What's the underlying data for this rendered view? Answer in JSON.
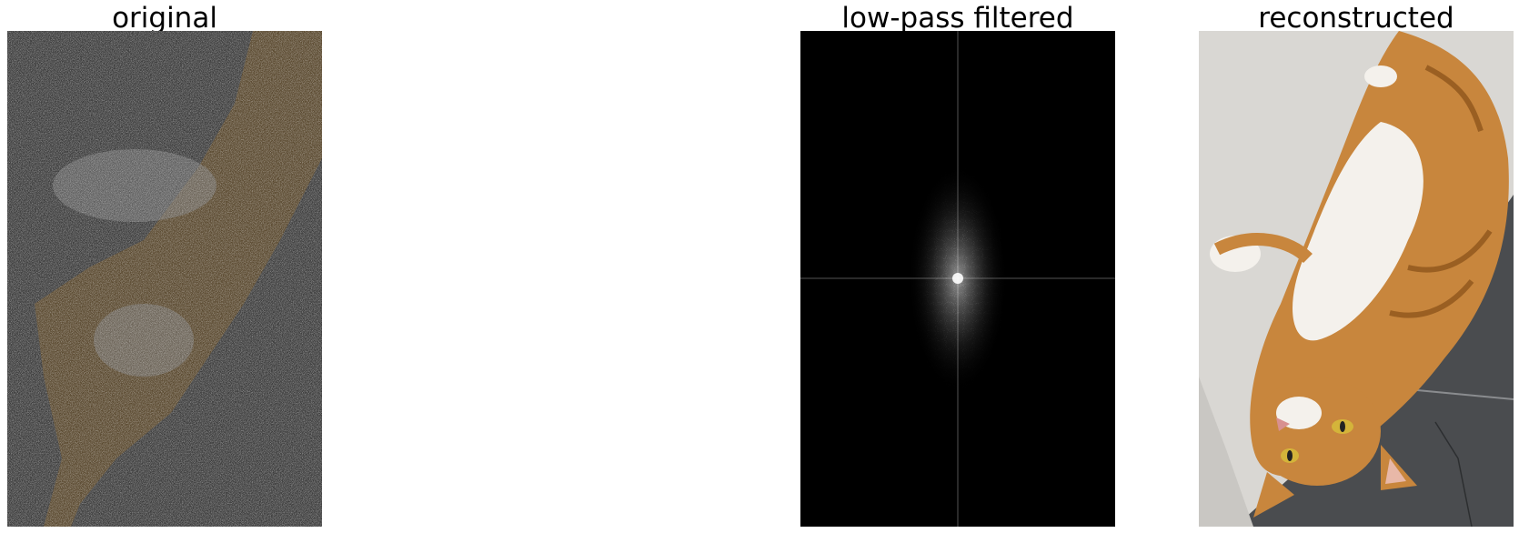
{
  "figure": {
    "panels": [
      {
        "title": "original",
        "content": "noisy-cat-photo"
      },
      {
        "title": "low-pass filtered",
        "content": "fourier-spectrum"
      },
      {
        "title": "reconstructed",
        "content": "cat-photo"
      }
    ]
  },
  "colors": {
    "background": "#ffffff",
    "spectrum_background": "#000000",
    "cat_orange": "#c8863d",
    "cat_white": "#f4f1ec",
    "wall_gray": "#d9d7d3",
    "floor_gray": "#4a4c4f"
  }
}
